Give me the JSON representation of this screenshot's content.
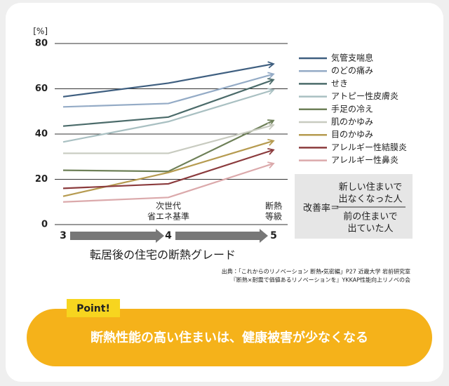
{
  "chart_data": {
    "type": "line",
    "y_unit_label": "[%]",
    "x_axis_title": "転居後の住宅の断熱グレード",
    "x": [
      3,
      4,
      5
    ],
    "xlim": [
      3,
      5
    ],
    "xticks": [
      3,
      4,
      5
    ],
    "ylim": [
      0,
      80
    ],
    "yticks": [
      0,
      20,
      40,
      60,
      80
    ],
    "grid": true,
    "annotations": [
      [
        "次世代",
        "省エネ基準"
      ],
      [
        "断熱",
        "等級"
      ]
    ],
    "series": [
      {
        "name": "気管支喘息",
        "color": "#3f5f80",
        "values": [
          56.5,
          62.5,
          71
        ]
      },
      {
        "name": "のどの痛み",
        "color": "#94abc6",
        "values": [
          52,
          53.5,
          66.5
        ]
      },
      {
        "name": "せき",
        "color": "#4b6b6a",
        "values": [
          43.5,
          47.5,
          64
        ]
      },
      {
        "name": "アトピー性皮膚炎",
        "color": "#a9c0c2",
        "values": [
          36.5,
          45.5,
          59.5
        ]
      },
      {
        "name": "手足の冷え",
        "color": "#6e8058",
        "values": [
          24,
          23.5,
          46
        ]
      },
      {
        "name": "肌のかゆみ",
        "color": "#c8cbc0",
        "values": [
          31.5,
          31.5,
          44
        ]
      },
      {
        "name": "目のかゆみ",
        "color": "#b69b50",
        "values": [
          12.5,
          23,
          37
        ]
      },
      {
        "name": "アレルギー性結膜炎",
        "color": "#8b3b3d",
        "values": [
          16,
          18,
          33
        ]
      },
      {
        "name": "アレルギー性鼻炎",
        "color": "#dba9ab",
        "values": [
          10,
          12,
          27
        ]
      }
    ]
  },
  "formula": {
    "label": "改善率＝",
    "numerator": [
      "新しい住まいで",
      "出なくなった人"
    ],
    "denominator": [
      "前の住まいで",
      "出ていた人"
    ]
  },
  "source": [
    "出典：「これからのリノベーション 断熱・気密編」P27 近畿大学 岩前研究室",
    "『断熱×耐震で価値あるリノベーションを』YKKAP性能向上リノベの会"
  ],
  "point": {
    "badge": "Point!",
    "message": "断熱性能の高い住まいは、健康被害が少なくなる"
  }
}
